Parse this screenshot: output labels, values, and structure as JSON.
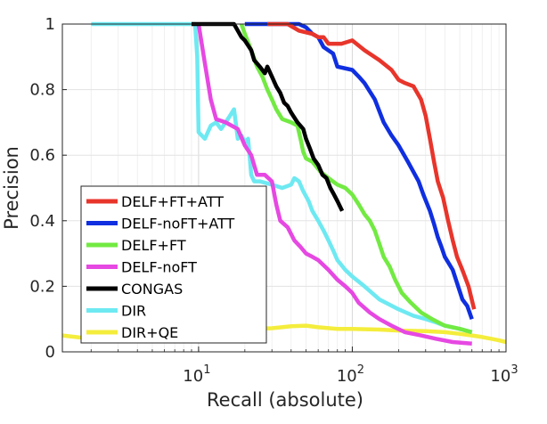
{
  "chart_data": {
    "type": "line",
    "title": "",
    "xlabel": "Recall (absolute)",
    "ylabel": "Precision",
    "xscale": "log",
    "xlim": [
      1.3,
      1000
    ],
    "ylim": [
      0,
      1
    ],
    "grid": true,
    "legend_position": "bottom-left",
    "x_ticks": [
      {
        "value": 10,
        "base": "10",
        "exp": "1"
      },
      {
        "value": 100,
        "base": "10",
        "exp": "2"
      },
      {
        "value": 1000,
        "base": "10",
        "exp": "3"
      }
    ],
    "y_ticks": [
      {
        "value": 0,
        "label": "0"
      },
      {
        "value": 0.2,
        "label": "0.2"
      },
      {
        "value": 0.4,
        "label": "0.4"
      },
      {
        "value": 0.6,
        "label": "0.6"
      },
      {
        "value": 0.8,
        "label": "0.8"
      },
      {
        "value": 1,
        "label": "1"
      }
    ],
    "series": [
      {
        "name": "DELF+FT+ATT",
        "color": "#e8352b",
        "points": [
          [
            28,
            1.0
          ],
          [
            38,
            1.0
          ],
          [
            45,
            0.98
          ],
          [
            55,
            0.97
          ],
          [
            60,
            0.96
          ],
          [
            65,
            0.96
          ],
          [
            70,
            0.94
          ],
          [
            85,
            0.94
          ],
          [
            100,
            0.95
          ],
          [
            120,
            0.92
          ],
          [
            150,
            0.89
          ],
          [
            180,
            0.86
          ],
          [
            200,
            0.83
          ],
          [
            220,
            0.82
          ],
          [
            250,
            0.81
          ],
          [
            280,
            0.77
          ],
          [
            300,
            0.72
          ],
          [
            320,
            0.65
          ],
          [
            340,
            0.58
          ],
          [
            360,
            0.52
          ],
          [
            390,
            0.47
          ],
          [
            420,
            0.4
          ],
          [
            450,
            0.34
          ],
          [
            480,
            0.29
          ],
          [
            520,
            0.25
          ],
          [
            570,
            0.2
          ],
          [
            620,
            0.13
          ]
        ]
      },
      {
        "name": "DELF-noFT+ATT",
        "color": "#0f2fe0",
        "points": [
          [
            20,
            1.0
          ],
          [
            30,
            1.0
          ],
          [
            45,
            1.0
          ],
          [
            50,
            0.99
          ],
          [
            55,
            0.97
          ],
          [
            60,
            0.96
          ],
          [
            65,
            0.93
          ],
          [
            75,
            0.91
          ],
          [
            80,
            0.87
          ],
          [
            100,
            0.86
          ],
          [
            110,
            0.84
          ],
          [
            120,
            0.82
          ],
          [
            140,
            0.77
          ],
          [
            160,
            0.7
          ],
          [
            180,
            0.66
          ],
          [
            200,
            0.63
          ],
          [
            230,
            0.58
          ],
          [
            270,
            0.52
          ],
          [
            290,
            0.48
          ],
          [
            320,
            0.43
          ],
          [
            340,
            0.39
          ],
          [
            360,
            0.35
          ],
          [
            380,
            0.32
          ],
          [
            400,
            0.29
          ],
          [
            450,
            0.25
          ],
          [
            480,
            0.21
          ],
          [
            520,
            0.16
          ],
          [
            560,
            0.14
          ],
          [
            600,
            0.1
          ]
        ]
      },
      {
        "name": "DELF+FT",
        "color": "#72ea42",
        "points": [
          [
            19,
            1.0
          ],
          [
            20,
            0.97
          ],
          [
            22,
            0.92
          ],
          [
            24,
            0.87
          ],
          [
            26,
            0.84
          ],
          [
            28,
            0.8
          ],
          [
            30,
            0.77
          ],
          [
            32,
            0.74
          ],
          [
            35,
            0.71
          ],
          [
            40,
            0.7
          ],
          [
            44,
            0.69
          ],
          [
            46,
            0.65
          ],
          [
            48,
            0.61
          ],
          [
            50,
            0.59
          ],
          [
            55,
            0.58
          ],
          [
            62,
            0.55
          ],
          [
            70,
            0.53
          ],
          [
            80,
            0.51
          ],
          [
            90,
            0.5
          ],
          [
            100,
            0.48
          ],
          [
            110,
            0.45
          ],
          [
            120,
            0.42
          ],
          [
            130,
            0.4
          ],
          [
            140,
            0.37
          ],
          [
            150,
            0.33
          ],
          [
            160,
            0.29
          ],
          [
            175,
            0.26
          ],
          [
            190,
            0.22
          ],
          [
            210,
            0.18
          ],
          [
            240,
            0.15
          ],
          [
            280,
            0.12
          ],
          [
            330,
            0.1
          ],
          [
            400,
            0.08
          ],
          [
            500,
            0.07
          ],
          [
            600,
            0.06
          ]
        ]
      },
      {
        "name": "DELF-noFT",
        "color": "#e648e2",
        "points": [
          [
            10,
            1.0
          ],
          [
            11,
            0.88
          ],
          [
            12,
            0.77
          ],
          [
            13,
            0.71
          ],
          [
            15,
            0.7
          ],
          [
            18,
            0.68
          ],
          [
            20,
            0.63
          ],
          [
            22,
            0.6
          ],
          [
            24,
            0.54
          ],
          [
            27,
            0.54
          ],
          [
            30,
            0.52
          ],
          [
            32,
            0.45
          ],
          [
            34,
            0.4
          ],
          [
            38,
            0.38
          ],
          [
            42,
            0.34
          ],
          [
            46,
            0.32
          ],
          [
            50,
            0.3
          ],
          [
            55,
            0.29
          ],
          [
            60,
            0.28
          ],
          [
            70,
            0.25
          ],
          [
            80,
            0.22
          ],
          [
            90,
            0.2
          ],
          [
            100,
            0.18
          ],
          [
            110,
            0.15
          ],
          [
            130,
            0.12
          ],
          [
            150,
            0.1
          ],
          [
            180,
            0.08
          ],
          [
            220,
            0.06
          ],
          [
            280,
            0.05
          ],
          [
            350,
            0.04
          ],
          [
            450,
            0.03
          ],
          [
            600,
            0.025
          ]
        ]
      },
      {
        "name": "CONGAS",
        "color": "#000000",
        "points": [
          [
            9,
            1.0
          ],
          [
            14,
            1.0
          ],
          [
            17,
            1.0
          ],
          [
            18,
            0.98
          ],
          [
            19,
            0.96
          ],
          [
            20,
            0.95
          ],
          [
            22,
            0.92
          ],
          [
            23,
            0.89
          ],
          [
            25,
            0.87
          ],
          [
            27,
            0.85
          ],
          [
            28,
            0.87
          ],
          [
            30,
            0.84
          ],
          [
            32,
            0.81
          ],
          [
            34,
            0.79
          ],
          [
            36,
            0.76
          ],
          [
            38,
            0.75
          ],
          [
            40,
            0.73
          ],
          [
            44,
            0.7
          ],
          [
            48,
            0.68
          ],
          [
            50,
            0.65
          ],
          [
            53,
            0.62
          ],
          [
            56,
            0.59
          ],
          [
            60,
            0.57
          ],
          [
            64,
            0.54
          ],
          [
            68,
            0.53
          ],
          [
            72,
            0.5
          ],
          [
            76,
            0.48
          ],
          [
            80,
            0.46
          ],
          [
            86,
            0.43
          ]
        ]
      },
      {
        "name": "DIR",
        "color": "#6ee9f2",
        "points": [
          [
            2,
            1.0
          ],
          [
            5,
            1.0
          ],
          [
            9.5,
            1.0
          ],
          [
            9.8,
            0.9
          ],
          [
            10,
            0.67
          ],
          [
            11,
            0.65
          ],
          [
            12,
            0.69
          ],
          [
            13,
            0.7
          ],
          [
            14,
            0.68
          ],
          [
            15,
            0.7
          ],
          [
            16,
            0.72
          ],
          [
            17,
            0.74
          ],
          [
            18,
            0.65
          ],
          [
            19,
            0.66
          ],
          [
            20,
            0.64
          ],
          [
            21,
            0.65
          ],
          [
            22,
            0.54
          ],
          [
            23,
            0.52
          ],
          [
            25,
            0.52
          ],
          [
            30,
            0.51
          ],
          [
            35,
            0.5
          ],
          [
            40,
            0.51
          ],
          [
            42,
            0.53
          ],
          [
            45,
            0.52
          ],
          [
            48,
            0.49
          ],
          [
            52,
            0.46
          ],
          [
            55,
            0.43
          ],
          [
            60,
            0.4
          ],
          [
            65,
            0.37
          ],
          [
            70,
            0.34
          ],
          [
            75,
            0.31
          ],
          [
            80,
            0.28
          ],
          [
            90,
            0.25
          ],
          [
            100,
            0.23
          ],
          [
            120,
            0.2
          ],
          [
            150,
            0.16
          ],
          [
            200,
            0.13
          ],
          [
            250,
            0.11
          ],
          [
            300,
            0.1
          ],
          [
            350,
            0.09
          ],
          [
            400,
            0.08
          ],
          [
            500,
            0.07
          ],
          [
            600,
            0.06
          ]
        ]
      },
      {
        "name": "DIR+QE",
        "color": "#f4ed3c",
        "points": [
          [
            1.3,
            0.05
          ],
          [
            2,
            0.04
          ],
          [
            3,
            0.05
          ],
          [
            5,
            0.055
          ],
          [
            8,
            0.06
          ],
          [
            12,
            0.065
          ],
          [
            20,
            0.07
          ],
          [
            30,
            0.072
          ],
          [
            40,
            0.078
          ],
          [
            50,
            0.08
          ],
          [
            60,
            0.075
          ],
          [
            80,
            0.07
          ],
          [
            100,
            0.07
          ],
          [
            150,
            0.068
          ],
          [
            200,
            0.065
          ],
          [
            300,
            0.063
          ],
          [
            400,
            0.06
          ],
          [
            500,
            0.055
          ],
          [
            600,
            0.05
          ],
          [
            700,
            0.045
          ],
          [
            800,
            0.04
          ],
          [
            900,
            0.035
          ],
          [
            1000,
            0.03
          ]
        ]
      }
    ]
  }
}
